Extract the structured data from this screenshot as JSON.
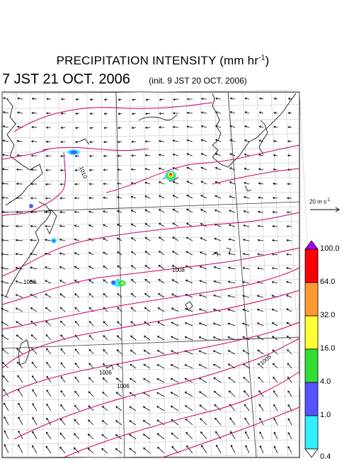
{
  "title": "PRECIPITATION INTENSITY (mm hr",
  "title_unit_sup": "-1",
  "title_close": ")",
  "valid_time": "7 JST 21 OCT. 2006",
  "init_time": "(init. 9 JST 20 OCT. 2006)",
  "wind_scale": {
    "label": "20 m s",
    "unit_sup": "-1"
  },
  "pressure_labels": [
    "1010",
    "1008",
    "1008",
    "1006",
    "1006",
    "1005"
  ],
  "colorbar": {
    "levels": [
      "100.0",
      "64.0",
      "32.0",
      "16.0",
      "4.0",
      "1.0",
      "0.4"
    ],
    "colors": [
      "#ff0000",
      "#ff9933",
      "#ffff33",
      "#33dd33",
      "#5555ff",
      "#33eeff"
    ],
    "top_cap_color": "#aa00ff",
    "bottom_cap_color": "#ffffff"
  },
  "colors": {
    "isobar": "#cc0066",
    "coast": "#000000",
    "grid": "#999999",
    "arrows": "#000000"
  }
}
